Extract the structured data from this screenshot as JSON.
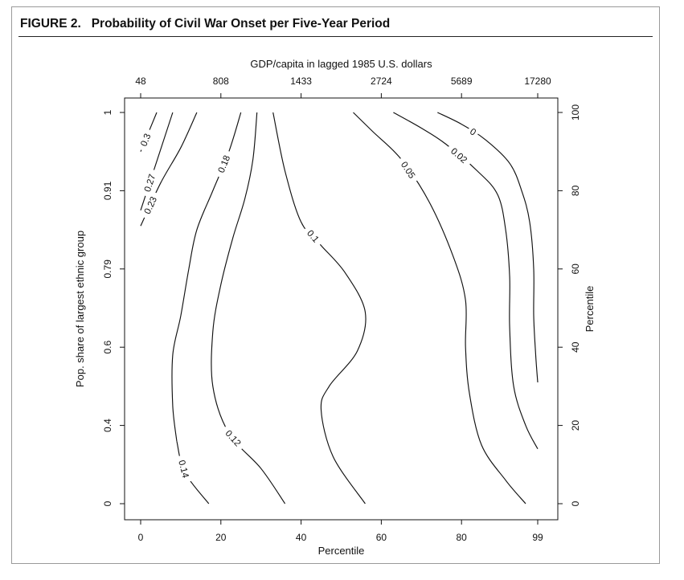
{
  "figure": {
    "label": "FIGURE 2.",
    "title": "Probability of Civil War Onset per Five-Year Period"
  },
  "colors": {
    "line": "#111111",
    "frame": "#9a9a9a",
    "background": "#ffffff"
  },
  "chart_data": {
    "type": "contour",
    "title": "",
    "xlabel": "Percentile",
    "x2label": "GDP/capita in lagged 1985 U.S. dollars",
    "ylabel": "Pop. share of largest ethnic group",
    "y2label": "Percentile",
    "xlim": [
      0,
      99
    ],
    "ylim": [
      0,
      100
    ],
    "x_ticks": [
      "0",
      "20",
      "40",
      "60",
      "80",
      "99"
    ],
    "x2_ticks": [
      "48",
      "808",
      "1433",
      "2724",
      "5689",
      "17280"
    ],
    "y_ticks": [
      "0",
      "0.4",
      "0.6",
      "0.79",
      "0.91",
      "1"
    ],
    "y2_ticks": [
      "0",
      "20",
      "40",
      "60",
      "80",
      "100"
    ],
    "grid": false,
    "contours": [
      {
        "level": "0.3",
        "points": [
          [
            4,
            100
          ],
          [
            0,
            90
          ]
        ]
      },
      {
        "level": "0.27",
        "points": [
          [
            8,
            100
          ],
          [
            0,
            75
          ]
        ]
      },
      {
        "level": "0.23",
        "points": [
          [
            14,
            100
          ],
          [
            10,
            91
          ],
          [
            5,
            82
          ],
          [
            0,
            71
          ]
        ]
      },
      {
        "level": "0.18",
        "points": [
          [
            25,
            100
          ],
          [
            22,
            90
          ],
          [
            18,
            80
          ],
          [
            14,
            70
          ],
          [
            12,
            60
          ],
          [
            10,
            48
          ],
          [
            8,
            38
          ],
          [
            8,
            25
          ],
          [
            9,
            16
          ]
        ]
      },
      {
        "level": "0.14",
        "points": [
          [
            9,
            16
          ],
          [
            11,
            8
          ],
          [
            17,
            0
          ]
        ]
      },
      {
        "level": "0.12",
        "points": [
          [
            29,
            100
          ],
          [
            28,
            88
          ],
          [
            26,
            78
          ],
          [
            23,
            68
          ],
          [
            20,
            56
          ],
          [
            18,
            44
          ],
          [
            18,
            30
          ],
          [
            22,
            18
          ],
          [
            30,
            9
          ],
          [
            36,
            0
          ]
        ]
      },
      {
        "level": "0.1",
        "points": [
          [
            33,
            100
          ],
          [
            36,
            85
          ],
          [
            40,
            72
          ],
          [
            45,
            66
          ],
          [
            51,
            59
          ],
          [
            56,
            49
          ],
          [
            54,
            39
          ],
          [
            47,
            30
          ],
          [
            45,
            24
          ],
          [
            48,
            12
          ],
          [
            56,
            0
          ]
        ]
      },
      {
        "level": "0.05",
        "points": [
          [
            53,
            100
          ],
          [
            58,
            95
          ],
          [
            65,
            88
          ],
          [
            72,
            77
          ],
          [
            78,
            63
          ],
          [
            81,
            52
          ],
          [
            81,
            40
          ],
          [
            82,
            28
          ],
          [
            85,
            15
          ],
          [
            91,
            6
          ],
          [
            96,
            0
          ]
        ]
      },
      {
        "level": "0.02",
        "points": [
          [
            63,
            100
          ],
          [
            70,
            96
          ],
          [
            76,
            92
          ],
          [
            84,
            85
          ],
          [
            89,
            79
          ],
          [
            91,
            70
          ],
          [
            92,
            58
          ],
          [
            92,
            45
          ],
          [
            93,
            30
          ],
          [
            96,
            20
          ],
          [
            99,
            14
          ]
        ]
      },
      {
        "level": "0",
        "points": [
          [
            74,
            100
          ],
          [
            80,
            97
          ],
          [
            86,
            93
          ],
          [
            92,
            87
          ],
          [
            95,
            80
          ],
          [
            97,
            72
          ],
          [
            98,
            60
          ],
          [
            98,
            48
          ],
          [
            98.5,
            38
          ],
          [
            99,
            31
          ]
        ]
      }
    ]
  }
}
